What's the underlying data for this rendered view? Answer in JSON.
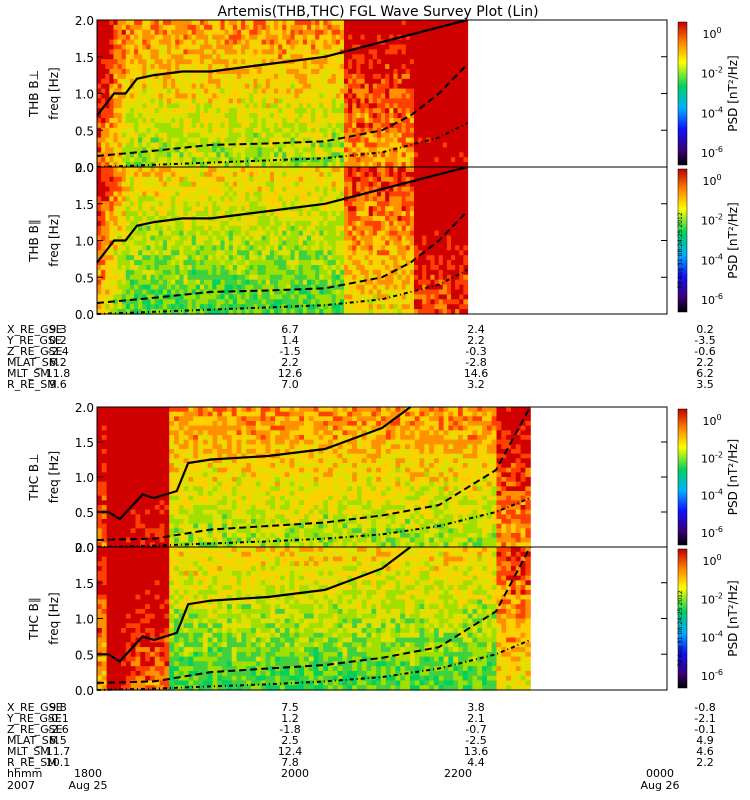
{
  "title": "Artemis(THB,THC) FGL Wave Survey Plot (Lin)",
  "colorbar": {
    "label": "PSD [nT²/Hz]",
    "ticks": [
      {
        "base": "10",
        "exp": "0",
        "value": 1
      },
      {
        "base": "10",
        "exp": "-2",
        "value": 0.01
      },
      {
        "base": "10",
        "exp": "-4",
        "value": 0.0001
      },
      {
        "base": "10",
        "exp": "-6",
        "value": 1e-06
      }
    ],
    "scale": "log",
    "colormap_stops": [
      "#000000",
      "#3a0070",
      "#1010ff",
      "#00b0ff",
      "#00d060",
      "#ffff00",
      "#ff8000",
      "#c00000"
    ]
  },
  "stamp": "Fri Aug 31 08:24:25 2012",
  "time_axis": {
    "hhmm": {
      "label": "hhmm",
      "ticks": [
        "1800",
        "2000",
        "2200",
        "0000"
      ]
    },
    "date": {
      "label": "2007",
      "ticks": [
        "Aug 25",
        "Aug 26"
      ]
    }
  },
  "ephemeris_groups": [
    {
      "rows": [
        {
          "label": "X_RE_GSE",
          "values": [
            "9.3",
            "6.7",
            "2.4",
            "0.2"
          ]
        },
        {
          "label": "Y_RE_GSE",
          "values": [
            "0.2",
            "1.4",
            "2.2",
            "-3.5"
          ]
        },
        {
          "label": "Z_RE_GSE",
          "values": [
            "-2.4",
            "-1.5",
            "-0.3",
            "-0.6"
          ]
        },
        {
          "label": "MLAT_SM",
          "values": [
            "6.2",
            "2.2",
            "-2.8",
            "2.2"
          ]
        },
        {
          "label": "MLT_SM",
          "values": [
            "11.8",
            "12.6",
            "14.6",
            "6.2"
          ]
        },
        {
          "label": "R_RE_SM",
          "values": [
            "9.6",
            "7.0",
            "3.2",
            "3.5"
          ]
        }
      ]
    },
    {
      "rows": [
        {
          "label": "X_RE_GSE",
          "values": [
            "9.8",
            "7.5",
            "3.8",
            "-0.8"
          ]
        },
        {
          "label": "Y_RE_GSE",
          "values": [
            "-0.1",
            "1.2",
            "2.1",
            "-2.1"
          ]
        },
        {
          "label": "Z_RE_GSE",
          "values": [
            "-2.6",
            "-1.8",
            "-0.7",
            "-0.1"
          ]
        },
        {
          "label": "MLAT_SM",
          "values": [
            "6.5",
            "2.5",
            "-2.5",
            "4.9"
          ]
        },
        {
          "label": "MLT_SM",
          "values": [
            "11.7",
            "12.4",
            "13.6",
            "4.6"
          ]
        },
        {
          "label": "R_RE_SM",
          "values": [
            "10.1",
            "7.8",
            "4.4",
            "2.2"
          ]
        }
      ]
    }
  ],
  "chart_data": [
    {
      "type": "heatmap",
      "probe": "THB",
      "component_label": "THB B⊥",
      "ylabel": "freq [Hz]",
      "ylim": [
        0,
        2.0
      ],
      "yticks": [
        "0.0",
        "0.5",
        "1.0",
        "1.5",
        "2.0"
      ],
      "x_fraction_with_data": [
        0,
        0.65
      ],
      "series": [
        {
          "x": [
            0,
            0.03,
            0.05,
            0.07,
            0.1,
            0.15,
            0.2,
            0.3,
            0.4,
            0.5,
            0.6,
            0.65
          ],
          "y": [
            0.7,
            1.0,
            1.0,
            1.2,
            1.25,
            1.3,
            1.3,
            1.4,
            1.5,
            1.7,
            1.9,
            2.0
          ]
        },
        {
          "x": [
            0,
            0.1,
            0.2,
            0.3,
            0.4,
            0.5,
            0.55,
            0.6,
            0.65
          ],
          "y": [
            0.15,
            0.22,
            0.3,
            0.32,
            0.35,
            0.5,
            0.7,
            1.0,
            1.4
          ]
        },
        {
          "x": [
            0,
            0.1,
            0.2,
            0.3,
            0.4,
            0.5,
            0.6,
            0.65
          ],
          "y": [
            0.0,
            0.03,
            0.06,
            0.09,
            0.12,
            0.2,
            0.4,
            0.6
          ]
        }
      ]
    },
    {
      "type": "heatmap",
      "probe": "THB",
      "component_label": "THB B∥",
      "ylabel": "freq [Hz]",
      "ylim": [
        0,
        2.0
      ],
      "yticks": [
        "0.0",
        "0.5",
        "1.0",
        "1.5",
        "2.0"
      ],
      "x_fraction_with_data": [
        0,
        0.65
      ],
      "series": [
        {
          "x": [
            0,
            0.03,
            0.05,
            0.07,
            0.1,
            0.15,
            0.2,
            0.3,
            0.4,
            0.5,
            0.6,
            0.65
          ],
          "y": [
            0.7,
            1.0,
            1.0,
            1.2,
            1.25,
            1.3,
            1.3,
            1.4,
            1.5,
            1.7,
            1.9,
            2.0
          ]
        },
        {
          "x": [
            0,
            0.1,
            0.2,
            0.3,
            0.4,
            0.5,
            0.55,
            0.6,
            0.65
          ],
          "y": [
            0.15,
            0.22,
            0.3,
            0.32,
            0.35,
            0.5,
            0.7,
            1.0,
            1.4
          ]
        },
        {
          "x": [
            0,
            0.1,
            0.2,
            0.3,
            0.4,
            0.5,
            0.6,
            0.65
          ],
          "y": [
            0.0,
            0.03,
            0.06,
            0.09,
            0.12,
            0.2,
            0.4,
            0.6
          ]
        }
      ]
    },
    {
      "type": "heatmap",
      "probe": "THC",
      "component_label": "THC B⊥",
      "ylabel": "freq [Hz]",
      "ylim": [
        0,
        2.0
      ],
      "yticks": [
        "0.0",
        "0.5",
        "1.0",
        "1.5",
        "2.0"
      ],
      "x_fraction_with_data": [
        0,
        0.76
      ],
      "series": [
        {
          "x": [
            0,
            0.02,
            0.04,
            0.08,
            0.1,
            0.12,
            0.14,
            0.16,
            0.2,
            0.3,
            0.4,
            0.5,
            0.55
          ],
          "y": [
            0.5,
            0.5,
            0.4,
            0.75,
            0.7,
            0.75,
            0.8,
            1.2,
            1.25,
            1.3,
            1.4,
            1.7,
            2.0
          ]
        },
        {
          "x": [
            0,
            0.1,
            0.2,
            0.3,
            0.4,
            0.5,
            0.6,
            0.7,
            0.76
          ],
          "y": [
            0.1,
            0.12,
            0.25,
            0.3,
            0.35,
            0.45,
            0.6,
            1.1,
            2.0
          ]
        },
        {
          "x": [
            0,
            0.1,
            0.2,
            0.3,
            0.4,
            0.5,
            0.6,
            0.7,
            0.76
          ],
          "y": [
            0.0,
            0.02,
            0.05,
            0.08,
            0.12,
            0.18,
            0.3,
            0.5,
            0.7
          ]
        }
      ]
    },
    {
      "type": "heatmap",
      "probe": "THC",
      "component_label": "THC B∥",
      "ylabel": "freq [Hz]",
      "ylim": [
        0,
        2.0
      ],
      "yticks": [
        "0.0",
        "0.5",
        "1.0",
        "1.5",
        "2.0"
      ],
      "x_fraction_with_data": [
        0,
        0.76
      ],
      "series": [
        {
          "x": [
            0,
            0.02,
            0.04,
            0.08,
            0.1,
            0.12,
            0.14,
            0.16,
            0.2,
            0.3,
            0.4,
            0.5,
            0.55
          ],
          "y": [
            0.5,
            0.5,
            0.4,
            0.75,
            0.7,
            0.75,
            0.8,
            1.2,
            1.25,
            1.3,
            1.4,
            1.7,
            2.0
          ]
        },
        {
          "x": [
            0,
            0.1,
            0.2,
            0.3,
            0.4,
            0.5,
            0.6,
            0.7,
            0.76
          ],
          "y": [
            0.1,
            0.12,
            0.25,
            0.3,
            0.35,
            0.45,
            0.6,
            1.1,
            2.0
          ]
        },
        {
          "x": [
            0,
            0.1,
            0.2,
            0.3,
            0.4,
            0.5,
            0.6,
            0.7,
            0.76
          ],
          "y": [
            0.0,
            0.02,
            0.05,
            0.08,
            0.12,
            0.18,
            0.3,
            0.5,
            0.7
          ]
        }
      ]
    }
  ]
}
